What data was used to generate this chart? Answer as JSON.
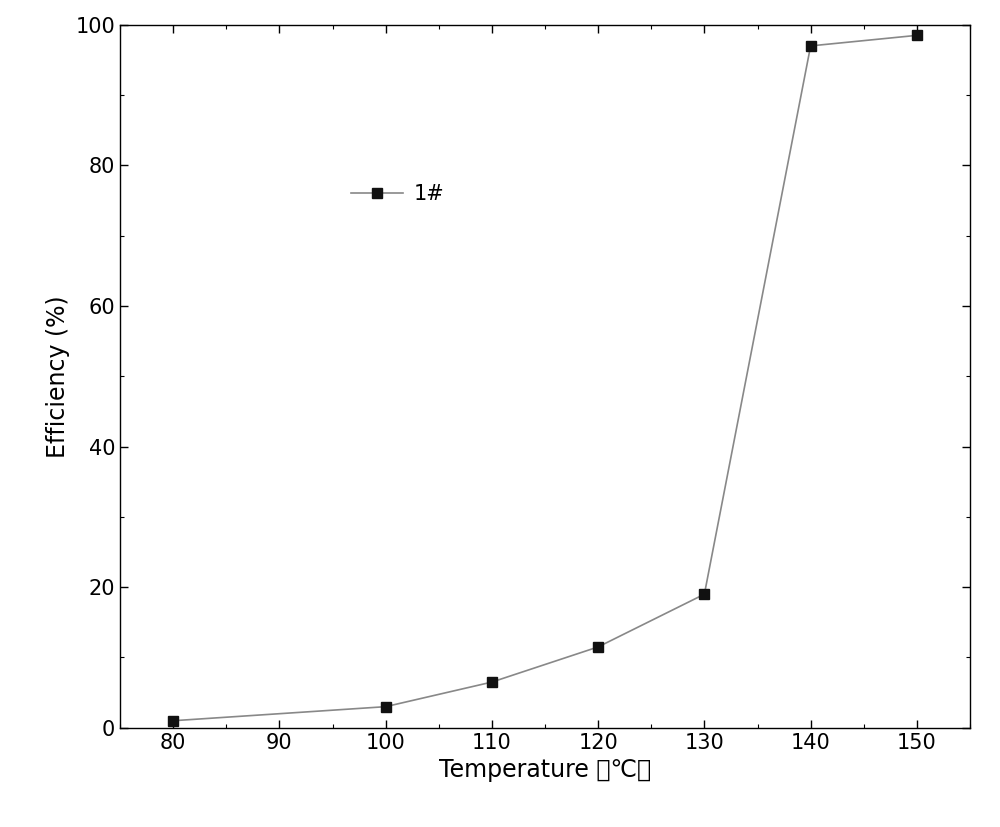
{
  "x": [
    80,
    100,
    110,
    120,
    130,
    140,
    150
  ],
  "y": [
    1.0,
    3.0,
    6.5,
    11.5,
    19.0,
    97.0,
    98.5
  ],
  "line_color": "#888888",
  "marker_color": "#111111",
  "marker": "s",
  "marker_size": 7,
  "line_width": 1.2,
  "legend_label": "1#",
  "xlabel": "Temperature （℃）",
  "ylabel": "Efficiency (%)",
  "xlim": [
    75,
    155
  ],
  "ylim": [
    0,
    100
  ],
  "xticks": [
    80,
    90,
    100,
    110,
    120,
    130,
    140,
    150
  ],
  "yticks": [
    0,
    20,
    40,
    60,
    80,
    100
  ],
  "tick_fontsize": 15,
  "label_fontsize": 17,
  "legend_fontsize": 15,
  "background_color": "#ffffff",
  "plot_bg_color": "#ffffff"
}
